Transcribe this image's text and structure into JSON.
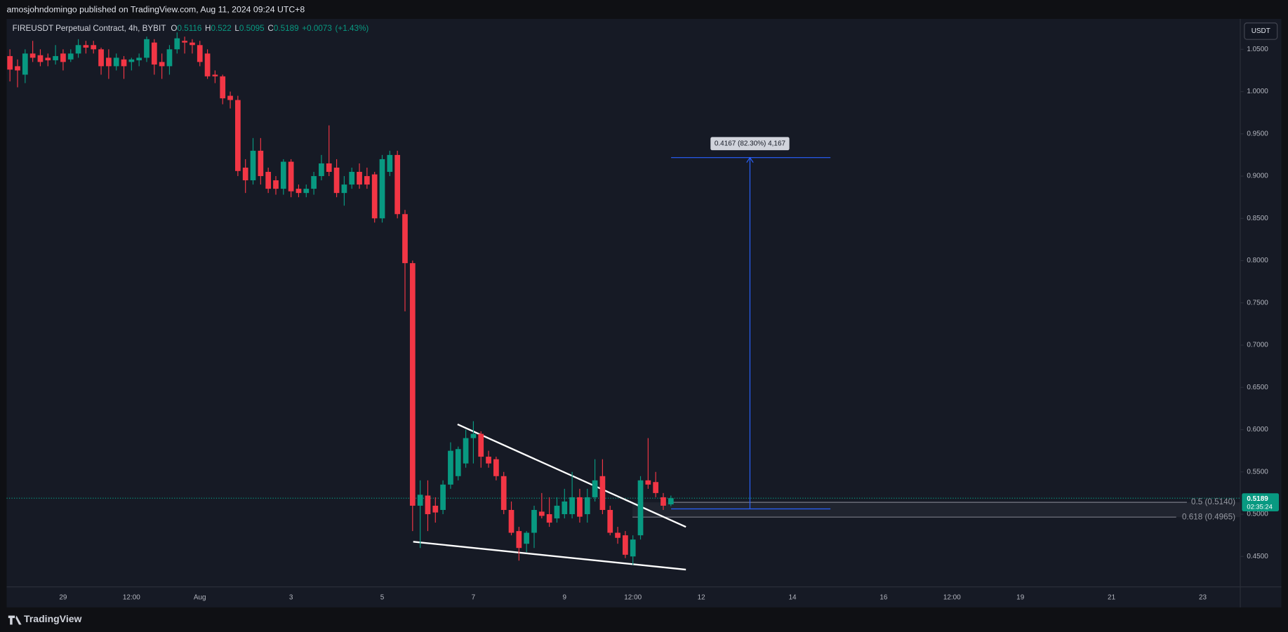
{
  "header": {
    "text": "amosjohndomingo published on TradingView.com, Aug 11, 2024 09:24 UTC+8"
  },
  "footer": {
    "brand": "TradingView"
  },
  "chart_data": {
    "type": "candlestick",
    "title": "FIREUSDT Perpetual Contract, 4h, BYBIT",
    "ohlc_labels": [
      "O",
      "H",
      "L",
      "C"
    ],
    "ohlc": [
      0.5116,
      0.522,
      0.5095,
      0.5189
    ],
    "change": "+0.0073",
    "change_pct": "(+1.43%)",
    "currency": "USDT",
    "last_price": 0.5189,
    "countdown": "02:35:24",
    "fib_labels": [
      "0.5 (0.5140)",
      "0.618 (0.4965)"
    ],
    "measure_label": "0.4167 (82.30%) 4,167",
    "up_color": "#089981",
    "down_color": "#f23645",
    "grid": false,
    "ylim": [
      0.414,
      1.086
    ],
    "yticks": [
      {
        "value": 0.45,
        "label": "0.4500"
      },
      {
        "value": 0.5,
        "label": "0.5000"
      },
      {
        "value": 0.55,
        "label": "0.5500"
      },
      {
        "value": 0.6,
        "label": "0.6000"
      },
      {
        "value": 0.65,
        "label": "0.6500"
      },
      {
        "value": 0.7,
        "label": "0.7000"
      },
      {
        "value": 0.75,
        "label": "0.7500"
      },
      {
        "value": 0.8,
        "label": "0.8000"
      },
      {
        "value": 0.85,
        "label": "0.8500"
      },
      {
        "value": 0.9,
        "label": "0.9000"
      },
      {
        "value": 0.95,
        "label": "0.9500"
      },
      {
        "value": 1.0,
        "label": "1.0000"
      },
      {
        "value": 1.05,
        "label": "1.0500"
      }
    ],
    "categories": [
      null,
      null,
      null,
      null,
      null,
      null,
      null,
      "29",
      null,
      null,
      null,
      null,
      null,
      null,
      null,
      null,
      "12:00",
      null,
      null,
      null,
      null,
      null,
      null,
      null,
      null,
      "Aug",
      null,
      null,
      null,
      null,
      null,
      null,
      null,
      null,
      null,
      null,
      null,
      "3",
      null,
      null,
      null,
      null,
      null,
      null,
      null,
      null,
      null,
      null,
      null,
      "5",
      null,
      null,
      null,
      null,
      null,
      null,
      null,
      null,
      null,
      null,
      null,
      "7",
      null,
      null,
      null,
      null,
      null,
      null,
      null,
      null,
      null,
      null,
      null,
      "9",
      null,
      null,
      null,
      null,
      null,
      null,
      null,
      null,
      "12:00",
      null,
      null,
      null,
      null,
      null,
      null,
      null,
      null,
      "12",
      null,
      null,
      null,
      null,
      null,
      null,
      null,
      null,
      null,
      null,
      null,
      "14",
      null,
      null,
      null,
      null,
      null,
      null,
      null,
      null,
      null,
      null,
      null,
      "16",
      null,
      null,
      null,
      null,
      null,
      null,
      null,
      null,
      "12:00",
      null,
      null,
      null,
      null,
      null,
      null,
      null,
      null,
      "19",
      null,
      null,
      null,
      null,
      null,
      null,
      null,
      null,
      null,
      null,
      null,
      "21",
      null,
      null,
      null,
      null,
      null,
      null,
      null,
      null,
      null,
      null,
      null,
      "23"
    ],
    "values": [
      [
        1.042,
        1.05,
        1.012,
        1.026
      ],
      [
        1.03,
        1.038,
        1.005,
        1.025
      ],
      [
        1.02,
        1.05,
        1.01,
        1.045
      ],
      [
        1.045,
        1.06,
        1.035,
        1.04
      ],
      [
        1.043,
        1.05,
        1.03,
        1.035
      ],
      [
        1.04,
        1.045,
        1.03,
        1.037
      ],
      [
        1.037,
        1.055,
        1.032,
        1.042
      ],
      [
        1.045,
        1.05,
        1.025,
        1.035
      ],
      [
        1.038,
        1.05,
        1.035,
        1.045
      ],
      [
        1.045,
        1.062,
        1.04,
        1.055
      ],
      [
        1.055,
        1.06,
        1.045,
        1.052
      ],
      [
        1.055,
        1.06,
        1.045,
        1.05
      ],
      [
        1.05,
        1.052,
        1.02,
        1.03
      ],
      [
        1.04,
        1.05,
        1.015,
        1.03
      ],
      [
        1.03,
        1.045,
        1.025,
        1.04
      ],
      [
        1.038,
        1.042,
        1.015,
        1.03
      ],
      [
        1.035,
        1.04,
        1.025,
        1.038
      ],
      [
        1.037,
        1.045,
        1.03,
        1.04
      ],
      [
        1.04,
        1.065,
        1.035,
        1.062
      ],
      [
        1.058,
        1.062,
        1.02,
        1.032
      ],
      [
        1.035,
        1.045,
        1.015,
        1.03
      ],
      [
        1.03,
        1.055,
        1.02,
        1.05
      ],
      [
        1.05,
        1.07,
        1.045,
        1.063
      ],
      [
        1.06,
        1.065,
        1.045,
        1.058
      ],
      [
        1.058,
        1.062,
        1.045,
        1.055
      ],
      [
        1.055,
        1.06,
        1.03,
        1.035
      ],
      [
        1.045,
        1.05,
        1.015,
        1.018
      ],
      [
        1.02,
        1.025,
        1.01,
        1.018
      ],
      [
        1.018,
        1.02,
        0.985,
        0.992
      ],
      [
        0.995,
        1.0,
        0.98,
        0.99
      ],
      [
        0.99,
        0.995,
        0.9,
        0.906
      ],
      [
        0.91,
        0.92,
        0.88,
        0.895
      ],
      [
        0.895,
        0.945,
        0.89,
        0.93
      ],
      [
        0.93,
        0.945,
        0.89,
        0.9
      ],
      [
        0.905,
        0.91,
        0.88,
        0.885
      ],
      [
        0.895,
        0.9,
        0.878,
        0.885
      ],
      [
        0.885,
        0.92,
        0.878,
        0.917
      ],
      [
        0.917,
        0.92,
        0.875,
        0.882
      ],
      [
        0.885,
        0.89,
        0.875,
        0.88
      ],
      [
        0.88,
        0.89,
        0.875,
        0.885
      ],
      [
        0.885,
        0.905,
        0.878,
        0.9
      ],
      [
        0.9,
        0.925,
        0.895,
        0.915
      ],
      [
        0.915,
        0.96,
        0.9,
        0.905
      ],
      [
        0.91,
        0.92,
        0.875,
        0.88
      ],
      [
        0.88,
        0.9,
        0.865,
        0.89
      ],
      [
        0.89,
        0.91,
        0.885,
        0.905
      ],
      [
        0.905,
        0.915,
        0.885,
        0.89
      ],
      [
        0.9,
        0.91,
        0.885,
        0.89
      ],
      [
        0.902,
        0.905,
        0.845,
        0.85
      ],
      [
        0.85,
        0.925,
        0.845,
        0.92
      ],
      [
        0.905,
        0.93,
        0.9,
        0.925
      ],
      [
        0.925,
        0.93,
        0.85,
        0.855
      ],
      [
        0.855,
        0.86,
        0.74,
        0.797
      ],
      [
        0.797,
        0.8,
        0.48,
        0.51
      ],
      [
        0.51,
        0.54,
        0.46,
        0.523
      ],
      [
        0.522,
        0.54,
        0.48,
        0.5
      ],
      [
        0.51,
        0.52,
        0.49,
        0.502
      ],
      [
        0.505,
        0.54,
        0.5,
        0.535
      ],
      [
        0.535,
        0.585,
        0.53,
        0.575
      ],
      [
        0.545,
        0.58,
        0.54,
        0.577
      ],
      [
        0.56,
        0.6,
        0.555,
        0.59
      ],
      [
        0.59,
        0.61,
        0.56,
        0.595
      ],
      [
        0.595,
        0.598,
        0.555,
        0.568
      ],
      [
        0.568,
        0.575,
        0.555,
        0.56
      ],
      [
        0.565,
        0.568,
        0.54,
        0.545
      ],
      [
        0.545,
        0.55,
        0.5,
        0.505
      ],
      [
        0.505,
        0.515,
        0.475,
        0.478
      ],
      [
        0.48,
        0.485,
        0.445,
        0.46
      ],
      [
        0.465,
        0.48,
        0.455,
        0.478
      ],
      [
        0.478,
        0.51,
        0.46,
        0.505
      ],
      [
        0.503,
        0.525,
        0.495,
        0.498
      ],
      [
        0.5,
        0.52,
        0.485,
        0.49
      ],
      [
        0.495,
        0.52,
        0.49,
        0.51
      ],
      [
        0.5,
        0.53,
        0.495,
        0.515
      ],
      [
        0.5,
        0.55,
        0.495,
        0.52
      ],
      [
        0.52,
        0.53,
        0.49,
        0.497
      ],
      [
        0.5,
        0.53,
        0.49,
        0.52
      ],
      [
        0.52,
        0.565,
        0.515,
        0.54
      ],
      [
        0.545,
        0.565,
        0.5,
        0.505
      ],
      [
        0.505,
        0.51,
        0.475,
        0.478
      ],
      [
        0.478,
        0.485,
        0.465,
        0.472
      ],
      [
        0.475,
        0.48,
        0.448,
        0.452
      ],
      [
        0.45,
        0.475,
        0.44,
        0.47
      ],
      [
        0.475,
        0.545,
        0.47,
        0.54
      ],
      [
        0.54,
        0.59,
        0.53,
        0.535
      ],
      [
        0.538,
        0.55,
        0.52,
        0.525
      ],
      [
        0.52,
        0.525,
        0.505,
        0.51
      ],
      [
        0.5116,
        0.522,
        0.5095,
        0.5189
      ],
      null,
      null,
      null,
      null,
      null,
      null,
      null,
      null,
      null,
      null,
      null,
      null,
      null,
      null,
      null,
      null,
      null,
      null,
      null,
      null,
      null,
      null,
      null,
      null,
      null,
      null,
      null,
      null,
      null,
      null,
      null,
      null,
      null,
      null,
      null,
      null,
      null,
      null,
      null,
      null,
      null,
      null,
      null,
      null,
      null,
      null,
      null,
      null,
      null,
      null,
      null,
      null,
      null,
      null,
      null,
      null,
      null,
      null,
      null,
      null,
      null,
      null,
      null,
      null,
      null,
      null,
      null,
      null,
      null,
      null
    ]
  }
}
